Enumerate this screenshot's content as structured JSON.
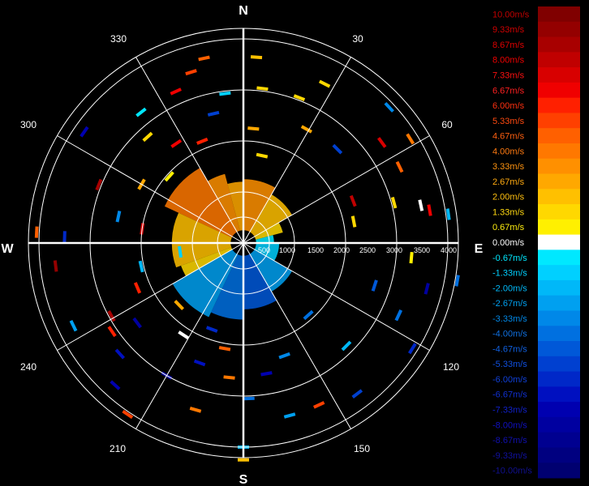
{
  "chart_data": {
    "type": "polar-radar",
    "compass": {
      "north": "N",
      "east": "E",
      "south": "S",
      "west": "W"
    },
    "bearing_labels": [
      "30",
      "60",
      "120",
      "150",
      "210",
      "240",
      "300",
      "330"
    ],
    "range_labels": [
      "1000",
      "1500",
      "2000",
      "2500",
      "3000",
      "3500",
      "4000",
      "500"
    ],
    "range_max": 4000,
    "velocity_unit": "m/s",
    "colorscale": [
      {
        "label": "10.00m/s",
        "color": "#800000",
        "text": "#c00000"
      },
      {
        "label": "9.33m/s",
        "color": "#940000",
        "text": "#d00000"
      },
      {
        "label": "8.67m/s",
        "color": "#a80000",
        "text": "#e00000"
      },
      {
        "label": "8.00m/s",
        "color": "#c00000",
        "text": "#f00000"
      },
      {
        "label": "7.33m/s",
        "color": "#d80000",
        "text": "#ff1010"
      },
      {
        "label": "6.67m/s",
        "color": "#f00000",
        "text": "#ff2020"
      },
      {
        "label": "6.00m/s",
        "color": "#ff2000",
        "text": "#ff3010"
      },
      {
        "label": "5.33m/s",
        "color": "#ff4000",
        "text": "#ff4a10"
      },
      {
        "label": "4.67m/s",
        "color": "#ff6000",
        "text": "#ff6010"
      },
      {
        "label": "4.00m/s",
        "color": "#ff7800",
        "text": "#ff7a10"
      },
      {
        "label": "3.33m/s",
        "color": "#ff9000",
        "text": "#ff9410"
      },
      {
        "label": "2.67m/s",
        "color": "#ffa800",
        "text": "#ffaa10"
      },
      {
        "label": "2.00m/s",
        "color": "#ffc000",
        "text": "#ffc010"
      },
      {
        "label": "1.33m/s",
        "color": "#ffd800",
        "text": "#ffd810"
      },
      {
        "label": "0.67m/s",
        "color": "#fff000",
        "text": "#ffee10"
      },
      {
        "label": "0.00m/s",
        "color": "#ffffff",
        "text": "#ffffff"
      },
      {
        "label": "-0.67m/s",
        "color": "#00e8ff",
        "text": "#00e8ff"
      },
      {
        "label": "-1.33m/s",
        "color": "#00d0ff",
        "text": "#00d0ff"
      },
      {
        "label": "-2.00m/s",
        "color": "#00b8f8",
        "text": "#00b8f8"
      },
      {
        "label": "-2.67m/s",
        "color": "#00a0f0",
        "text": "#00a0f0"
      },
      {
        "label": "-3.33m/s",
        "color": "#0088e8",
        "text": "#0088e8"
      },
      {
        "label": "-4.00m/s",
        "color": "#0070e0",
        "text": "#1070e0"
      },
      {
        "label": "-4.67m/s",
        "color": "#0058d8",
        "text": "#1060e0"
      },
      {
        "label": "-5.33m/s",
        "color": "#0040d0",
        "text": "#1050e0"
      },
      {
        "label": "-6.00m/s",
        "color": "#0028c8",
        "text": "#1040d8"
      },
      {
        "label": "-6.67m/s",
        "color": "#0010c0",
        "text": "#1030d0"
      },
      {
        "label": "-7.33m/s",
        "color": "#0000b0",
        "text": "#1020c8"
      },
      {
        "label": "-8.00m/s",
        "color": "#0000a0",
        "text": "#1010c0"
      },
      {
        "label": "-8.67m/s",
        "color": "#000090",
        "text": "#1010b0"
      },
      {
        "label": "-9.33m/s",
        "color": "#000080",
        "text": "#1010a0"
      },
      {
        "label": "-10.00m/s",
        "color": "#000070",
        "text": "#101090"
      }
    ],
    "sectors": [
      {
        "az_from": 295,
        "az_to": 330,
        "r_from": 250,
        "r_to": 1700,
        "v": 4.0
      },
      {
        "az_from": 330,
        "az_to": 345,
        "r_from": 250,
        "r_to": 1400,
        "v": 3.0
      },
      {
        "az_from": 345,
        "az_to": 360,
        "r_from": 250,
        "r_to": 1200,
        "v": 2.5
      },
      {
        "az_from": 0,
        "az_to": 30,
        "r_from": 250,
        "r_to": 1250,
        "v": 3.0
      },
      {
        "az_from": 30,
        "az_to": 60,
        "r_from": 250,
        "r_to": 1100,
        "v": 2.0
      },
      {
        "az_from": 60,
        "az_to": 75,
        "r_from": 250,
        "r_to": 800,
        "v": 1.5
      },
      {
        "az_from": 250,
        "az_to": 295,
        "r_from": 250,
        "r_to": 1400,
        "v": 2.0
      },
      {
        "az_from": 240,
        "az_to": 250,
        "r_from": 250,
        "r_to": 1300,
        "v": 1.2
      },
      {
        "az_from": 75,
        "az_to": 90,
        "r_from": 250,
        "r_to": 600,
        "v": -0.7
      },
      {
        "az_from": 90,
        "az_to": 120,
        "r_from": 250,
        "r_to": 700,
        "v": -1.5
      },
      {
        "az_from": 120,
        "az_to": 150,
        "r_from": 250,
        "r_to": 1100,
        "v": -2.5
      },
      {
        "az_from": 150,
        "az_to": 180,
        "r_from": 250,
        "r_to": 1300,
        "v": -4.5
      },
      {
        "az_from": 180,
        "az_to": 205,
        "r_from": 250,
        "r_to": 1500,
        "v": -4.0
      },
      {
        "az_from": 205,
        "az_to": 240,
        "r_from": 250,
        "r_to": 1600,
        "v": -3.0
      }
    ],
    "gates": [
      {
        "az": 348,
        "r": 3700,
        "v": 4.5
      },
      {
        "az": 343,
        "r": 3500,
        "v": 5.0
      },
      {
        "az": 336,
        "r": 3250,
        "v": 6.7
      },
      {
        "az": 353,
        "r": 2950,
        "v": -1.5
      },
      {
        "az": 347,
        "r": 2600,
        "v": -5.5
      },
      {
        "az": 4,
        "r": 3650,
        "v": 2.0
      },
      {
        "az": 7,
        "r": 3050,
        "v": 1.3
      },
      {
        "az": 5,
        "r": 2250,
        "v": 2.7
      },
      {
        "az": 12,
        "r": 1750,
        "v": 1.5
      },
      {
        "az": 27,
        "r": 3500,
        "v": 1.3
      },
      {
        "az": 21,
        "r": 3050,
        "v": 1.5
      },
      {
        "az": 29,
        "r": 2550,
        "v": 2.7
      },
      {
        "az": 45,
        "r": 2600,
        "v": -5.5
      },
      {
        "az": 47,
        "r": 3900,
        "v": -3.3
      },
      {
        "az": 54,
        "r": 3350,
        "v": 7.3
      },
      {
        "az": 58,
        "r": 3850,
        "v": 4.0
      },
      {
        "az": 64,
        "r": 3400,
        "v": 4.7
      },
      {
        "az": 69,
        "r": 2300,
        "v": 8.0
      },
      {
        "az": 75,
        "r": 3050,
        "v": 1.3
      },
      {
        "az": 78,
        "r": 3550,
        "v": 0.0
      },
      {
        "az": 80,
        "r": 3700,
        "v": 6.7
      },
      {
        "az": 82,
        "r": 4050,
        "v": -2.0
      },
      {
        "az": 79,
        "r": 2200,
        "v": 1.3
      },
      {
        "az": 104,
        "r": 3700,
        "v": -8.0
      },
      {
        "az": 108,
        "r": 2700,
        "v": -4.7
      },
      {
        "az": 115,
        "r": 3350,
        "v": -4.0
      },
      {
        "az": 122,
        "r": 3900,
        "v": -6.0
      },
      {
        "az": 135,
        "r": 2850,
        "v": -2.0
      },
      {
        "az": 143,
        "r": 3700,
        "v": -5.3
      },
      {
        "az": 155,
        "r": 3500,
        "v": 5.3
      },
      {
        "az": 165,
        "r": 3500,
        "v": -2.7
      },
      {
        "az": 178,
        "r": 3050,
        "v": -4.0
      },
      {
        "az": 180,
        "r": 4000,
        "v": -2.0
      },
      {
        "az": 180,
        "r": 4250,
        "v": 2.0
      },
      {
        "az": 186,
        "r": 2650,
        "v": 4.0
      },
      {
        "az": 196,
        "r": 3400,
        "v": 4.0
      },
      {
        "az": 200,
        "r": 2500,
        "v": -6.7
      },
      {
        "az": 210,
        "r": 3000,
        "v": -8.0
      },
      {
        "az": 213,
        "r": 2150,
        "v": 0.0
      },
      {
        "az": 214,
        "r": 4050,
        "v": 5.3
      },
      {
        "az": 222,
        "r": 3750,
        "v": -7.3
      },
      {
        "az": 228,
        "r": 3250,
        "v": -6.7
      },
      {
        "az": 233,
        "r": 2600,
        "v": -8.0
      },
      {
        "az": 236,
        "r": 3100,
        "v": 6.0
      },
      {
        "az": 241,
        "r": 2950,
        "v": 8.7
      },
      {
        "az": 244,
        "r": 3700,
        "v": -2.7
      },
      {
        "az": 247,
        "r": 2250,
        "v": 6.0
      },
      {
        "az": 257,
        "r": 2050,
        "v": -2.0
      },
      {
        "az": 263,
        "r": 3700,
        "v": 9.3
      },
      {
        "az": 273,
        "r": 4050,
        "v": 4.7
      },
      {
        "az": 272,
        "r": 3500,
        "v": -6.0
      },
      {
        "az": 278,
        "r": 2000,
        "v": 7.3
      },
      {
        "az": 282,
        "r": 2500,
        "v": -3.3
      },
      {
        "az": 292,
        "r": 3050,
        "v": 8.7
      },
      {
        "az": 300,
        "r": 2300,
        "v": 2.7
      },
      {
        "az": 305,
        "r": 3800,
        "v": -7.3
      },
      {
        "az": 312,
        "r": 1950,
        "v": 0.67
      },
      {
        "az": 318,
        "r": 2800,
        "v": 1.3
      },
      {
        "az": 322,
        "r": 3250,
        "v": -0.7
      },
      {
        "az": 326,
        "r": 2350,
        "v": 6.7
      },
      {
        "az": 338,
        "r": 2150,
        "v": 6.0
      },
      {
        "az": 95,
        "r": 3300,
        "v": 0.67
      },
      {
        "az": 100,
        "r": 4250,
        "v": -4.0
      },
      {
        "az": 262,
        "r": 1250,
        "v": -1.3
      },
      {
        "az": 160,
        "r": 2350,
        "v": -3.3
      },
      {
        "az": 138,
        "r": 1900,
        "v": -4.0
      },
      {
        "az": 190,
        "r": 2100,
        "v": 4.7
      },
      {
        "az": 200,
        "r": 1800,
        "v": -6.0
      },
      {
        "az": 170,
        "r": 2600,
        "v": -7.3
      },
      {
        "az": 226,
        "r": 1750,
        "v": 2.7
      }
    ]
  }
}
